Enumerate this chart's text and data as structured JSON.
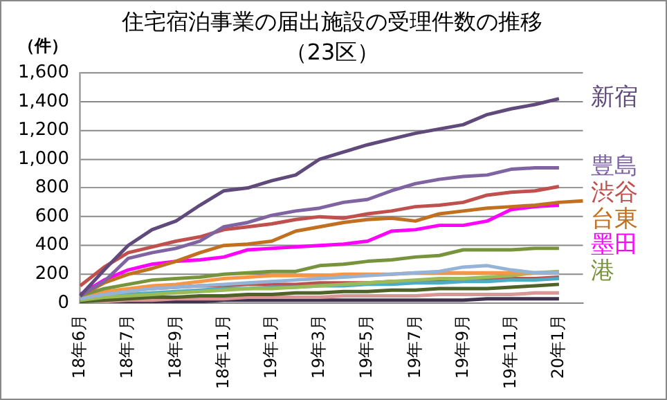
{
  "chart_data": {
    "type": "line",
    "title": "住宅宿泊事業の届出施設の受理件数の推移",
    "subtitle": "（23区）",
    "ylabel": "（件）",
    "categories": [
      "18年6月",
      null,
      "18年7月",
      null,
      "18年9月",
      null,
      "18年11月",
      null,
      "19年1月",
      null,
      "19年3月",
      null,
      "19年5月",
      null,
      "19年7月",
      null,
      "19年9月",
      null,
      "19年11月",
      null,
      "20年1月",
      null
    ],
    "ylim": [
      0,
      1600
    ],
    "yticks": [
      {
        "value": 0,
        "label": "0"
      },
      {
        "value": 200,
        "label": "200"
      },
      {
        "value": 400,
        "label": "400"
      },
      {
        "value": 600,
        "label": "600"
      },
      {
        "value": 800,
        "label": "800"
      },
      {
        "value": 1000,
        "label": "1,000"
      },
      {
        "value": 1200,
        "label": "1,200"
      },
      {
        "value": 1400,
        "label": "1,400"
      },
      {
        "value": 1600,
        "label": "1,600"
      }
    ],
    "grid": "y",
    "legend": false,
    "marker": "none",
    "series": [
      {
        "name": "新宿",
        "color": "#604a7b",
        "values": [
          50,
          230,
          400,
          510,
          570,
          680,
          780,
          800,
          850,
          890,
          1000,
          1050,
          1100,
          1140,
          1180,
          1210,
          1240,
          1310,
          1350,
          1380,
          1420,
          null
        ]
      },
      {
        "name": "豊島",
        "color": "#8064a2",
        "values": [
          50,
          150,
          310,
          350,
          380,
          430,
          530,
          560,
          610,
          640,
          660,
          700,
          720,
          780,
          830,
          860,
          880,
          890,
          930,
          940,
          940,
          null
        ]
      },
      {
        "name": "渋谷",
        "color": "#c0504d",
        "values": [
          120,
          250,
          350,
          390,
          430,
          460,
          510,
          530,
          550,
          580,
          600,
          590,
          620,
          640,
          670,
          680,
          700,
          750,
          770,
          780,
          810,
          null
        ]
      },
      {
        "name": "台東",
        "color": "#c0701f",
        "values": [
          50,
          140,
          200,
          240,
          290,
          350,
          400,
          410,
          430,
          500,
          530,
          560,
          580,
          590,
          570,
          620,
          640,
          660,
          670,
          680,
          700,
          710
        ]
      },
      {
        "name": "墨田",
        "color": "#ff00ff",
        "values": [
          60,
          160,
          230,
          270,
          290,
          300,
          320,
          370,
          380,
          390,
          400,
          410,
          430,
          500,
          510,
          540,
          540,
          570,
          650,
          670,
          680,
          null
        ]
      },
      {
        "name": "港",
        "color": "#77933c",
        "values": [
          50,
          100,
          130,
          160,
          170,
          180,
          200,
          210,
          220,
          220,
          260,
          270,
          290,
          300,
          320,
          330,
          370,
          370,
          370,
          380,
          380,
          null
        ]
      },
      {
        "color": "#95b3d7",
        "values": [
          30,
          60,
          80,
          100,
          110,
          120,
          130,
          140,
          150,
          160,
          170,
          180,
          190,
          200,
          210,
          220,
          250,
          260,
          230,
          210,
          210,
          null
        ]
      },
      {
        "color": "#f79646",
        "values": [
          40,
          80,
          100,
          120,
          130,
          150,
          170,
          180,
          190,
          190,
          190,
          200,
          200,
          200,
          210,
          210,
          210,
          210,
          210,
          210,
          210,
          null
        ]
      },
      {
        "color": "#9bbb59",
        "values": [
          20,
          40,
          50,
          60,
          70,
          80,
          90,
          100,
          100,
          110,
          120,
          130,
          140,
          150,
          160,
          170,
          170,
          180,
          190,
          210,
          220,
          null
        ]
      },
      {
        "color": "#4bacc6",
        "values": [
          30,
          50,
          60,
          70,
          80,
          90,
          100,
          100,
          110,
          110,
          120,
          120,
          130,
          130,
          140,
          140,
          150,
          150,
          160,
          160,
          170,
          null
        ]
      },
      {
        "color": "#c0504d",
        "values": [
          40,
          80,
          90,
          100,
          110,
          120,
          120,
          130,
          130,
          130,
          140,
          140,
          140,
          150,
          150,
          160,
          160,
          160,
          170,
          170,
          180,
          null
        ]
      },
      {
        "color": "#4f6228",
        "values": [
          10,
          20,
          30,
          40,
          40,
          50,
          50,
          60,
          60,
          70,
          70,
          80,
          80,
          90,
          90,
          100,
          100,
          100,
          110,
          120,
          130,
          null
        ]
      },
      {
        "color": "#d99694",
        "values": [
          10,
          10,
          20,
          20,
          30,
          30,
          30,
          40,
          40,
          40,
          40,
          50,
          50,
          50,
          50,
          60,
          60,
          60,
          60,
          70,
          70,
          null
        ]
      },
      {
        "color": "#403151",
        "values": [
          0,
          10,
          10,
          10,
          10,
          10,
          20,
          20,
          20,
          20,
          20,
          20,
          20,
          20,
          20,
          20,
          20,
          30,
          30,
          30,
          30,
          null
        ]
      }
    ]
  }
}
